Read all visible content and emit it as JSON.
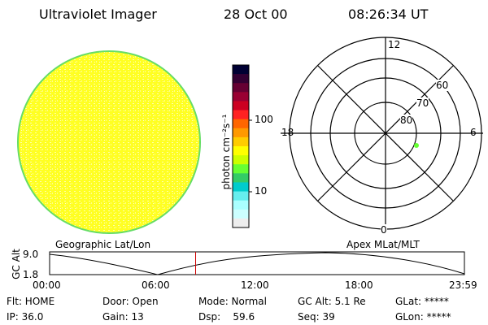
{
  "header": {
    "instrument": "Ultraviolet Imager",
    "date": "28 Oct 00",
    "time": "08:26:34 UT"
  },
  "colorbar": {
    "label": "photon cm⁻²s⁻¹",
    "ticks": [
      "100",
      "10"
    ],
    "colors": [
      "#000033",
      "#330033",
      "#660033",
      "#990033",
      "#cc0022",
      "#ff2222",
      "#ff6600",
      "#ff9900",
      "#ffcc00",
      "#ffff00",
      "#ccff00",
      "#66ff33",
      "#33cc66",
      "#00cccc",
      "#66eeee",
      "#aaffff",
      "#ccffff",
      "#eeeeee"
    ]
  },
  "polar_plot": {
    "label_top": "12",
    "label_bottom": "0",
    "label_left": "18",
    "label_right": "6",
    "lat_labels": [
      "60",
      "70",
      "80"
    ],
    "point_color": "#66ff33"
  },
  "timeline": {
    "left_label": "Geographic Lat/Lon",
    "right_label": "Apex MLat/MLT",
    "y_axis_label": "GC Alt",
    "y_ticks": [
      "9.0",
      "1.8"
    ],
    "x_ticks": [
      "00:00",
      "06:00",
      "12:00",
      "18:00",
      "23:59"
    ],
    "current_time_fraction": 0.352,
    "marker_color": "#cc0000"
  },
  "status": {
    "flt": "Flt: HOME",
    "ip": "IP: 36.0",
    "door": "Door: Open",
    "gain": "Gain: 13",
    "mode": "Mode: Normal",
    "dsp": "Dsp:    59.6",
    "gc_alt": "GC Alt: 5.1 Re",
    "seq": "Seq: 39",
    "glat": "GLat: *****",
    "glon": "GLon: *****"
  },
  "image_colors": {
    "disk_fill": "#ffff22",
    "disk_edge": "#66dd66"
  }
}
